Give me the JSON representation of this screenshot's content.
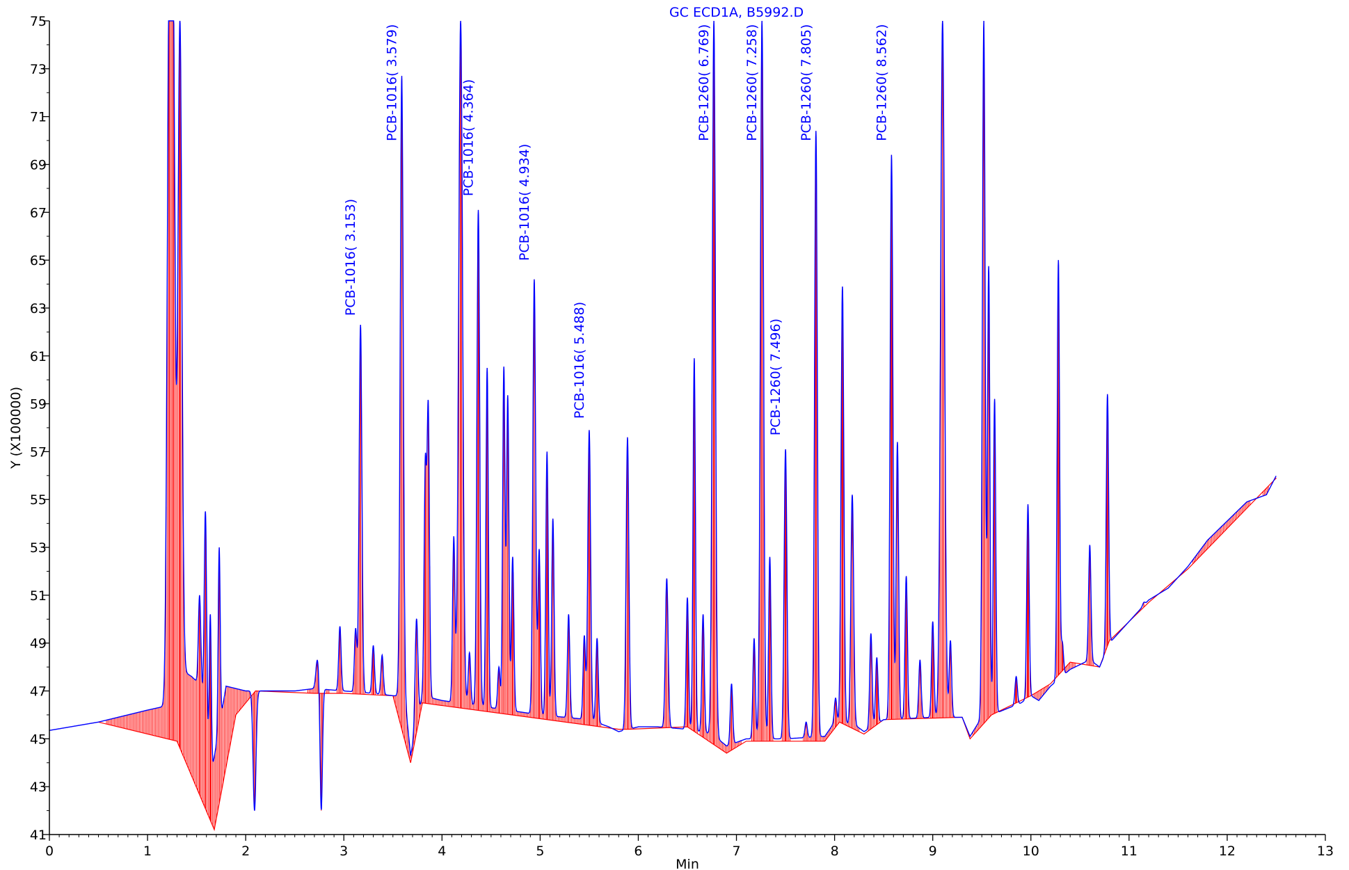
{
  "chart_data": {
    "type": "line",
    "title": "GC ECD1A, B5992.D",
    "xlabel": "Min",
    "ylabel": "Y (X100000)",
    "xlim": [
      0,
      13
    ],
    "ylim": [
      41,
      75
    ],
    "x_ticks": [
      0,
      1,
      2,
      3,
      4,
      5,
      6,
      7,
      8,
      9,
      10,
      11,
      12,
      13
    ],
    "y_ticks": [
      41,
      43,
      45,
      47,
      49,
      51,
      53,
      55,
      57,
      59,
      61,
      63,
      65,
      67,
      69,
      71,
      73,
      75
    ],
    "grid": false,
    "colors": {
      "signal": "#0000ff",
      "baseline": "#ff0000",
      "axis": "#000000",
      "annotation": "#0000ff"
    },
    "signal_points": [
      [
        0.0,
        45.35
      ],
      [
        0.5,
        45.7
      ],
      [
        1.0,
        46.2
      ],
      [
        1.22,
        46.4
      ],
      [
        1.3,
        48.0
      ],
      [
        1.45,
        47.6
      ],
      [
        1.55,
        47.2
      ],
      [
        1.65,
        43.5
      ],
      [
        1.8,
        47.2
      ],
      [
        2.0,
        47.0
      ],
      [
        2.2,
        47.0
      ],
      [
        2.5,
        47.0
      ],
      [
        2.7,
        47.1
      ],
      [
        3.0,
        47.0
      ],
      [
        3.3,
        46.9
      ],
      [
        3.5,
        46.8
      ],
      [
        3.62,
        46.8
      ],
      [
        3.68,
        44.3
      ],
      [
        3.8,
        46.8
      ],
      [
        4.0,
        46.6
      ],
      [
        4.5,
        46.3
      ],
      [
        5.0,
        46.0
      ],
      [
        5.5,
        45.8
      ],
      [
        5.7,
        45.5
      ],
      [
        5.8,
        45.3
      ],
      [
        6.0,
        45.5
      ],
      [
        6.2,
        45.5
      ],
      [
        6.5,
        45.4
      ],
      [
        6.75,
        45.2
      ],
      [
        6.9,
        44.7
      ],
      [
        7.1,
        45.0
      ],
      [
        7.5,
        45.0
      ],
      [
        7.9,
        45.1
      ],
      [
        8.0,
        45.7
      ],
      [
        8.2,
        45.6
      ],
      [
        8.3,
        45.3
      ],
      [
        8.5,
        45.8
      ],
      [
        9.0,
        45.9
      ],
      [
        9.3,
        45.9
      ],
      [
        9.38,
        45.1
      ],
      [
        9.5,
        45.9
      ],
      [
        9.6,
        46.0
      ],
      [
        9.9,
        46.5
      ],
      [
        10.0,
        46.8
      ],
      [
        10.08,
        46.6
      ],
      [
        10.2,
        47.2
      ],
      [
        10.4,
        47.9
      ],
      [
        10.6,
        48.3
      ],
      [
        10.7,
        48.0
      ],
      [
        10.8,
        49.0
      ],
      [
        11.0,
        49.9
      ],
      [
        11.2,
        50.8
      ],
      [
        11.4,
        51.3
      ],
      [
        11.6,
        52.2
      ],
      [
        11.8,
        53.3
      ],
      [
        12.0,
        54.1
      ],
      [
        12.2,
        54.9
      ],
      [
        12.4,
        55.2
      ],
      [
        12.5,
        56.0
      ]
    ],
    "peaks": [
      {
        "x": 1.22,
        "h": 75,
        "w": 0.02
      },
      {
        "x": 1.26,
        "h": 75,
        "w": 0.02
      },
      {
        "x": 1.33,
        "h": 75,
        "w": 0.02
      },
      {
        "x": 1.53,
        "h": 51.0,
        "w": 0.012
      },
      {
        "x": 1.59,
        "h": 54.5,
        "w": 0.012
      },
      {
        "x": 1.64,
        "h": 50.2,
        "w": 0.01
      },
      {
        "x": 1.73,
        "h": 53.0,
        "w": 0.01
      },
      {
        "x": 2.09,
        "h": 42.0,
        "w": 0.015
      },
      {
        "x": 2.77,
        "h": 42.0,
        "w": 0.012
      },
      {
        "x": 2.73,
        "h": 48.3,
        "w": 0.015
      },
      {
        "x": 2.96,
        "h": 49.7,
        "w": 0.012
      },
      {
        "x": 3.12,
        "h": 49.6,
        "w": 0.012
      },
      {
        "x": 3.17,
        "h": 62.3,
        "w": 0.014
      },
      {
        "x": 3.3,
        "h": 48.9,
        "w": 0.012
      },
      {
        "x": 3.39,
        "h": 48.5,
        "w": 0.012
      },
      {
        "x": 3.59,
        "h": 72.7,
        "w": 0.015
      },
      {
        "x": 3.74,
        "h": 50.0,
        "w": 0.014
      },
      {
        "x": 3.83,
        "h": 56.3,
        "w": 0.012
      },
      {
        "x": 3.86,
        "h": 58.7,
        "w": 0.012
      },
      {
        "x": 4.12,
        "h": 53.4,
        "w": 0.012
      },
      {
        "x": 4.19,
        "h": 75,
        "w": 0.02
      },
      {
        "x": 4.28,
        "h": 48.6,
        "w": 0.012
      },
      {
        "x": 4.37,
        "h": 67.1,
        "w": 0.014
      },
      {
        "x": 4.46,
        "h": 60.5,
        "w": 0.012
      },
      {
        "x": 4.58,
        "h": 48.0,
        "w": 0.012
      },
      {
        "x": 4.63,
        "h": 60.5,
        "w": 0.012
      },
      {
        "x": 4.67,
        "h": 59.3,
        "w": 0.012
      },
      {
        "x": 4.72,
        "h": 52.6,
        "w": 0.012
      },
      {
        "x": 4.94,
        "h": 64.2,
        "w": 0.014
      },
      {
        "x": 4.99,
        "h": 52.9,
        "w": 0.012
      },
      {
        "x": 5.07,
        "h": 57.0,
        "w": 0.012
      },
      {
        "x": 5.13,
        "h": 54.2,
        "w": 0.012
      },
      {
        "x": 5.29,
        "h": 50.2,
        "w": 0.012
      },
      {
        "x": 5.45,
        "h": 49.3,
        "w": 0.012
      },
      {
        "x": 5.5,
        "h": 57.9,
        "w": 0.014
      },
      {
        "x": 5.58,
        "h": 49.2,
        "w": 0.012
      },
      {
        "x": 5.89,
        "h": 57.6,
        "w": 0.014
      },
      {
        "x": 6.29,
        "h": 51.7,
        "w": 0.014
      },
      {
        "x": 6.5,
        "h": 50.9,
        "w": 0.012
      },
      {
        "x": 6.57,
        "h": 60.9,
        "w": 0.012
      },
      {
        "x": 6.66,
        "h": 50.2,
        "w": 0.012
      },
      {
        "x": 6.77,
        "h": 75,
        "w": 0.016
      },
      {
        "x": 6.95,
        "h": 47.3,
        "w": 0.012
      },
      {
        "x": 7.18,
        "h": 49.2,
        "w": 0.012
      },
      {
        "x": 7.26,
        "h": 75,
        "w": 0.016
      },
      {
        "x": 7.34,
        "h": 52.6,
        "w": 0.012
      },
      {
        "x": 7.5,
        "h": 57.1,
        "w": 0.014
      },
      {
        "x": 7.71,
        "h": 45.7,
        "w": 0.012
      },
      {
        "x": 7.81,
        "h": 70.4,
        "w": 0.014
      },
      {
        "x": 8.01,
        "h": 46.7,
        "w": 0.012
      },
      {
        "x": 8.08,
        "h": 63.9,
        "w": 0.014
      },
      {
        "x": 8.18,
        "h": 55.2,
        "w": 0.014
      },
      {
        "x": 8.37,
        "h": 49.4,
        "w": 0.012
      },
      {
        "x": 8.43,
        "h": 48.4,
        "w": 0.012
      },
      {
        "x": 8.58,
        "h": 69.4,
        "w": 0.014
      },
      {
        "x": 8.64,
        "h": 57.4,
        "w": 0.012
      },
      {
        "x": 8.73,
        "h": 51.8,
        "w": 0.012
      },
      {
        "x": 8.87,
        "h": 48.3,
        "w": 0.012
      },
      {
        "x": 9.0,
        "h": 49.9,
        "w": 0.012
      },
      {
        "x": 9.1,
        "h": 75,
        "w": 0.02
      },
      {
        "x": 9.18,
        "h": 49.1,
        "w": 0.012
      },
      {
        "x": 9.52,
        "h": 75,
        "w": 0.014
      },
      {
        "x": 9.57,
        "h": 64.7,
        "w": 0.012
      },
      {
        "x": 9.63,
        "h": 59.2,
        "w": 0.012
      },
      {
        "x": 9.85,
        "h": 47.6,
        "w": 0.012
      },
      {
        "x": 9.97,
        "h": 54.8,
        "w": 0.012
      },
      {
        "x": 10.28,
        "h": 65.0,
        "w": 0.012
      },
      {
        "x": 10.32,
        "h": 49.0,
        "w": 0.012
      },
      {
        "x": 10.6,
        "h": 53.1,
        "w": 0.012
      },
      {
        "x": 10.78,
        "h": 59.4,
        "w": 0.012
      },
      {
        "x": 11.15,
        "h": 50.7,
        "w": 0.012
      }
    ],
    "baseline_points": [
      [
        0.5,
        45.7
      ],
      [
        1.3,
        44.9
      ],
      [
        1.68,
        41.2
      ],
      [
        1.9,
        46.0
      ],
      [
        2.1,
        47.0
      ],
      [
        2.7,
        46.9
      ],
      [
        3.0,
        46.9
      ],
      [
        3.5,
        46.8
      ],
      [
        3.68,
        44.0
      ],
      [
        3.8,
        46.5
      ],
      [
        5.8,
        45.4
      ],
      [
        5.9,
        45.4
      ],
      [
        6.5,
        45.5
      ],
      [
        6.9,
        44.4
      ],
      [
        7.1,
        44.9
      ],
      [
        7.9,
        44.9
      ],
      [
        8.05,
        45.7
      ],
      [
        8.3,
        45.2
      ],
      [
        8.5,
        45.8
      ],
      [
        9.3,
        45.9
      ],
      [
        9.38,
        45.0
      ],
      [
        9.6,
        46.0
      ],
      [
        10.0,
        46.8
      ],
      [
        10.2,
        47.3
      ],
      [
        10.4,
        48.2
      ],
      [
        10.7,
        48.0
      ],
      [
        10.8,
        49.1
      ],
      [
        11.2,
        50.7
      ],
      [
        11.6,
        52.1
      ],
      [
        12.5,
        55.9
      ]
    ],
    "annotations": [
      {
        "x": 3.17,
        "y": 62.5,
        "label": "PCB-1016( 3.153)"
      },
      {
        "x": 3.59,
        "y": 69.8,
        "label": "PCB-1016( 3.579)"
      },
      {
        "x": 4.37,
        "y": 67.5,
        "label": "PCB-1016( 4.364)"
      },
      {
        "x": 4.94,
        "y": 64.8,
        "label": "PCB-1016( 4.934)"
      },
      {
        "x": 5.5,
        "y": 58.2,
        "label": "PCB-1016( 5.488)"
      },
      {
        "x": 6.77,
        "y": 69.8,
        "label": "PCB-1260( 6.769)"
      },
      {
        "x": 7.26,
        "y": 69.8,
        "label": "PCB-1260( 7.258)"
      },
      {
        "x": 7.5,
        "y": 57.5,
        "label": "PCB-1260( 7.496)"
      },
      {
        "x": 7.81,
        "y": 69.8,
        "label": "PCB-1260( 7.805)"
      },
      {
        "x": 8.58,
        "y": 69.8,
        "label": "PCB-1260( 8.562)"
      }
    ]
  }
}
